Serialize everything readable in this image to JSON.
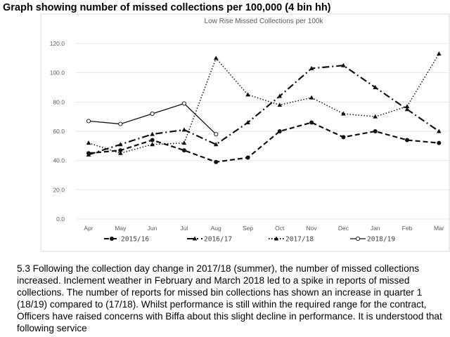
{
  "heading": "Graph showing number of missed collections per 100,000 (4 bin hh)",
  "chart_data": {
    "type": "line",
    "title": "Low Rise Missed Collections per 100k",
    "categories": [
      "Apr",
      "May",
      "Jun",
      "Jul",
      "Aug",
      "Sep",
      "Oct",
      "Nov",
      "Dec",
      "Jan",
      "Feb",
      "Mar"
    ],
    "ylim": [
      0,
      120
    ],
    "yticks": [
      "0.0",
      "20.0",
      "40.0",
      "60.0",
      "80.0",
      "100.0",
      "120.0"
    ],
    "grid": true,
    "legend": "bottom",
    "series": [
      {
        "name": "2015/16",
        "style": "dashed",
        "marker": "circle",
        "values": [
          45,
          47,
          54,
          47,
          39,
          42,
          60,
          66,
          56,
          60,
          54,
          52
        ]
      },
      {
        "name": "2016/17",
        "style": "dashdot",
        "marker": "triangle",
        "values": [
          44,
          51,
          58,
          61,
          51,
          66,
          84,
          103,
          105,
          90,
          75,
          60
        ]
      },
      {
        "name": "2017/18",
        "style": "dotted",
        "marker": "triangle",
        "values": [
          52,
          45,
          51,
          52,
          110,
          85,
          78,
          83,
          72,
          70,
          77,
          113
        ]
      },
      {
        "name": "2018/19",
        "style": "solid",
        "marker": "open-circle",
        "values": [
          67,
          65,
          72,
          79,
          58,
          null,
          null,
          null,
          null,
          null,
          null,
          null
        ]
      }
    ]
  },
  "body_text": "5.3 Following the collection day change in 2017/18 (summer), the number of missed collections increased. Inclement weather in February and March 2018 led to a spike in reports of missed collections. The number of reports for missed bin collections has shown an increase in quarter 1 (18/19) compared to (17/18). Whilst performance is still within the required range for the contract, Officers have raised concerns with Biffa about this slight decline in performance. It is understood that following service"
}
